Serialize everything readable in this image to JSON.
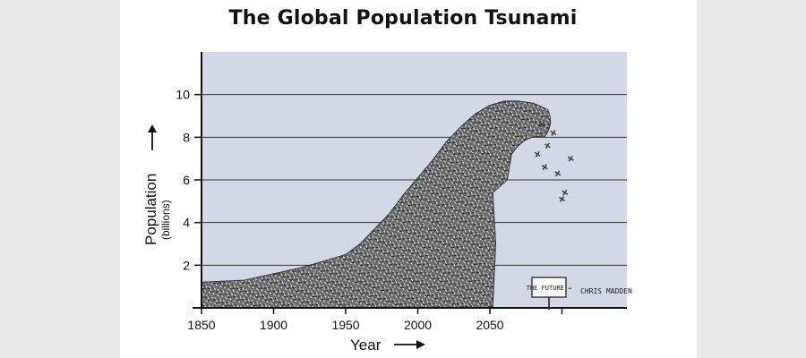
{
  "chart_data": {
    "type": "area",
    "title": "The Global Population Tsunami",
    "xlabel": "Year",
    "ylabel": "Population",
    "ylabel_units": "(billions)",
    "x_ticks": [
      "1850",
      "1900",
      "1950",
      "2000",
      "2050"
    ],
    "y_ticks": [
      "2",
      "4",
      "6",
      "8",
      "10"
    ],
    "xlim": [
      1850,
      2145
    ],
    "ylim": [
      0,
      12
    ],
    "grid": true,
    "series": [
      {
        "x": [
          1850,
          1880,
          1900,
          1920,
          1940,
          1950,
          1960,
          1970,
          1980,
          1990,
          2000,
          2010,
          2020,
          2030,
          2040,
          2050,
          2060,
          2070,
          2080,
          2090
        ],
        "values": [
          1.2,
          1.3,
          1.6,
          1.9,
          2.3,
          2.5,
          3.0,
          3.7,
          4.4,
          5.3,
          6.1,
          6.9,
          7.8,
          8.5,
          9.1,
          9.5,
          9.7,
          9.7,
          9.6,
          9.3
        ]
      }
    ],
    "annotations": {
      "sign": "THE FUTURE →",
      "signature": "CHRIS MADDEN"
    },
    "colors": {
      "plot_background": "#d4d8e6",
      "wave": "#5a5a5a",
      "gridline": "#333333"
    }
  }
}
